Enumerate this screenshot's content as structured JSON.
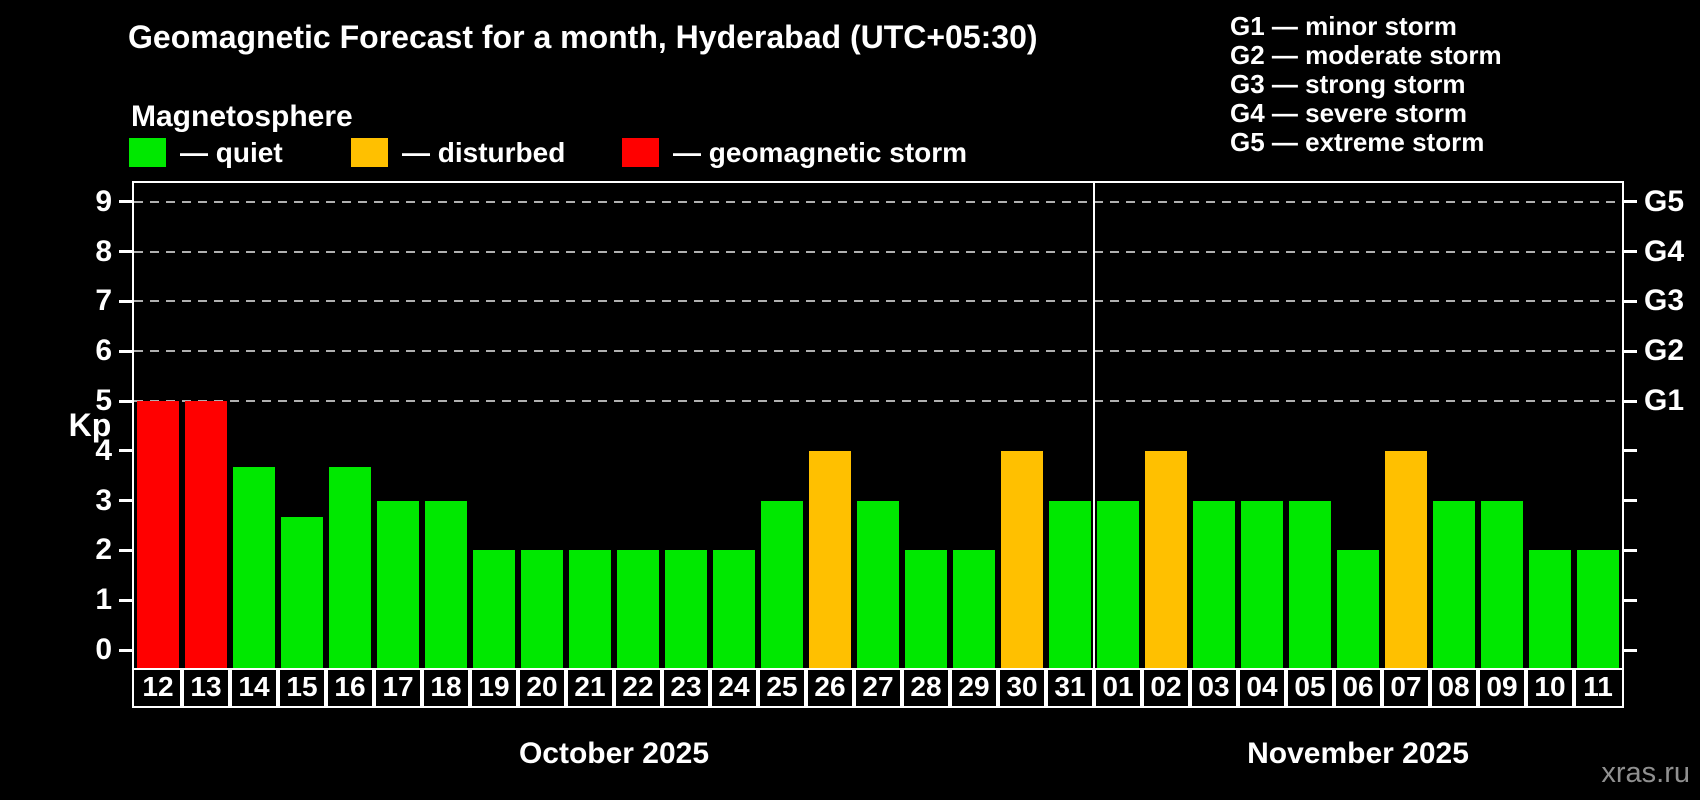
{
  "header": {
    "title": "Geomagnetic Forecast for a month, Hyderabad (UTC+05:30)",
    "subtitle": "Magnetosphere",
    "watermark": "xras.ru"
  },
  "legend": {
    "items": [
      {
        "key": "quiet",
        "label": "— quiet",
        "color": "#00e800"
      },
      {
        "key": "disturbed",
        "label": "— disturbed",
        "color": "#ffc000"
      },
      {
        "key": "storm",
        "label": "— geomagnetic storm",
        "color": "#ff0000"
      }
    ]
  },
  "g_legend": {
    "items": [
      "G1 — minor storm",
      "G2 — moderate storm",
      "G3 — strong storm",
      "G4 — severe storm",
      "G5 — extreme storm"
    ]
  },
  "chart_data": {
    "type": "bar",
    "title": "Geomagnetic Forecast for a month, Hyderabad (UTC+05:30)",
    "xlabel": "",
    "ylabel": "Kp",
    "ylim": [
      0,
      9
    ],
    "y_ticks": [
      0,
      1,
      2,
      3,
      4,
      5,
      6,
      7,
      8,
      9
    ],
    "gridlines_kp": [
      5,
      6,
      7,
      8,
      9
    ],
    "grid": "dashed horizontal at Kp 5-9 only",
    "right_axis_labels": [
      {
        "kp": 5,
        "text": "G1"
      },
      {
        "kp": 6,
        "text": "G2"
      },
      {
        "kp": 7,
        "text": "G3"
      },
      {
        "kp": 8,
        "text": "G4"
      },
      {
        "kp": 9,
        "text": "G5"
      }
    ],
    "colors": {
      "quiet": "#00e800",
      "disturbed": "#ffc000",
      "storm": "#ff0000"
    },
    "categories": [
      "12",
      "13",
      "14",
      "15",
      "16",
      "17",
      "18",
      "19",
      "20",
      "21",
      "22",
      "23",
      "24",
      "25",
      "26",
      "27",
      "28",
      "29",
      "30",
      "31",
      "01",
      "02",
      "03",
      "04",
      "05",
      "06",
      "07",
      "08",
      "09",
      "10",
      "11"
    ],
    "values": [
      5,
      5,
      3.67,
      2.67,
      3.67,
      3,
      3,
      2,
      2,
      2,
      2,
      2,
      2,
      3,
      4,
      3,
      2,
      2,
      4,
      3,
      3,
      4,
      3,
      3,
      3,
      2,
      4,
      3,
      3,
      2,
      2
    ],
    "statuses": [
      "storm",
      "storm",
      "quiet",
      "quiet",
      "quiet",
      "quiet",
      "quiet",
      "quiet",
      "quiet",
      "quiet",
      "quiet",
      "quiet",
      "quiet",
      "quiet",
      "disturbed",
      "quiet",
      "quiet",
      "quiet",
      "disturbed",
      "quiet",
      "quiet",
      "disturbed",
      "quiet",
      "quiet",
      "quiet",
      "quiet",
      "disturbed",
      "quiet",
      "quiet",
      "quiet",
      "quiet"
    ],
    "months": [
      {
        "label": "October 2025",
        "start_index": 0,
        "days": 20
      },
      {
        "label": "November 2025",
        "start_index": 20,
        "days": 11
      }
    ]
  }
}
